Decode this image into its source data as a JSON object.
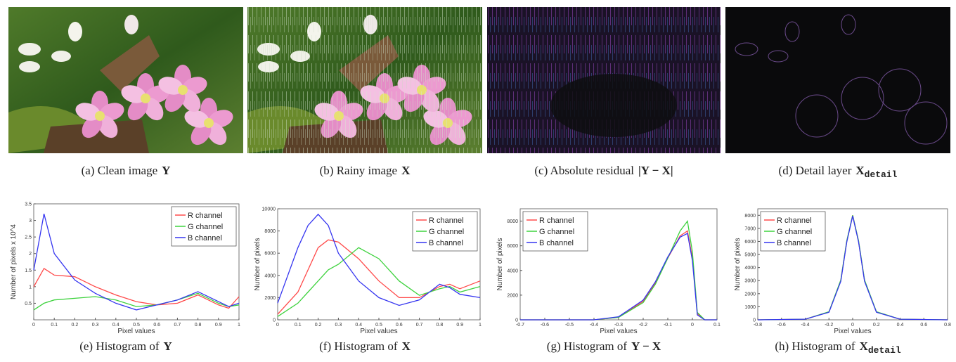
{
  "images": [
    {
      "caption": "(a) Clean image",
      "symbol": "Y"
    },
    {
      "caption": "(b) Rainy image",
      "symbol": "X"
    },
    {
      "caption": "(c) Absolute residual",
      "symbol": "|Y − X|"
    },
    {
      "caption": "(d) Detail layer",
      "symbol": "X",
      "subscript": "detail"
    }
  ],
  "chart_data": [
    {
      "type": "line",
      "caption": "(e) Histogram of",
      "symbol": "Y",
      "xlabel": "Pixel values",
      "ylabel": "Number of pixels x 10^4",
      "legend": "upper right",
      "x": [
        0,
        0.05,
        0.1,
        0.2,
        0.3,
        0.4,
        0.5,
        0.6,
        0.7,
        0.8,
        0.9,
        0.95,
        1
      ],
      "series": [
        {
          "name": "R channel",
          "color": "#ff4a4a",
          "values": [
            1.0,
            1.55,
            1.35,
            1.3,
            1.0,
            0.75,
            0.55,
            0.45,
            0.5,
            0.75,
            0.45,
            0.35,
            0.7
          ]
        },
        {
          "name": "G channel",
          "color": "#3ed23e",
          "values": [
            0.3,
            0.5,
            0.6,
            0.65,
            0.7,
            0.6,
            0.4,
            0.45,
            0.6,
            0.8,
            0.5,
            0.4,
            0.45
          ]
        },
        {
          "name": "B channel",
          "color": "#3535f0",
          "values": [
            1.5,
            3.2,
            2.0,
            1.2,
            0.8,
            0.5,
            0.3,
            0.45,
            0.6,
            0.85,
            0.55,
            0.4,
            0.5
          ]
        }
      ],
      "xlim": [
        0,
        1
      ],
      "xticks": [
        0,
        0.1,
        0.2,
        0.3,
        0.4,
        0.5,
        0.6,
        0.7,
        0.8,
        0.9,
        1
      ],
      "ylim": [
        0,
        3.5
      ],
      "yticks": [
        0.5,
        1,
        1.5,
        2,
        2.5,
        3,
        3.5
      ]
    },
    {
      "type": "line",
      "caption": "(f) Histogram of",
      "symbol": "X",
      "xlabel": "Pixel values",
      "ylabel": "Number of pixels",
      "legend": "upper right",
      "x": [
        0,
        0.1,
        0.15,
        0.2,
        0.25,
        0.3,
        0.4,
        0.5,
        0.6,
        0.7,
        0.8,
        0.85,
        0.9,
        1
      ],
      "series": [
        {
          "name": "R channel",
          "color": "#ff4a4a",
          "values": [
            500,
            2500,
            4500,
            6500,
            7200,
            7000,
            5500,
            3500,
            2000,
            2000,
            3000,
            3200,
            2800,
            3500
          ]
        },
        {
          "name": "G channel",
          "color": "#3ed23e",
          "values": [
            300,
            1500,
            2500,
            3500,
            4500,
            5000,
            6500,
            5500,
            3500,
            2200,
            2800,
            3000,
            2500,
            3000
          ]
        },
        {
          "name": "B channel",
          "color": "#3535f0",
          "values": [
            1500,
            6500,
            8500,
            9500,
            8500,
            6000,
            3500,
            2000,
            1300,
            1800,
            3200,
            2900,
            2300,
            2000
          ]
        }
      ],
      "xlim": [
        0,
        1
      ],
      "xticks": [
        0,
        0.1,
        0.2,
        0.3,
        0.4,
        0.5,
        0.6,
        0.7,
        0.8,
        0.9,
        1
      ],
      "ylim": [
        0,
        10000
      ],
      "yticks": [
        0,
        2000,
        4000,
        6000,
        8000,
        10000
      ]
    },
    {
      "type": "line",
      "caption": "(g) Histogram of",
      "symbol": "Y − X",
      "xlabel": "Pixel values",
      "ylabel": "Number of pixels",
      "legend": "upper left",
      "x": [
        -0.7,
        -0.4,
        -0.3,
        -0.2,
        -0.15,
        -0.1,
        -0.05,
        -0.02,
        0,
        0.02,
        0.05,
        0.1
      ],
      "series": [
        {
          "name": "R channel",
          "color": "#ff4a4a",
          "values": [
            0,
            0,
            200,
            1500,
            3000,
            5000,
            6800,
            7200,
            5000,
            500,
            0,
            0
          ]
        },
        {
          "name": "G channel",
          "color": "#3ed23e",
          "values": [
            0,
            0,
            200,
            1400,
            2900,
            5000,
            7200,
            8000,
            5500,
            600,
            0,
            0
          ]
        },
        {
          "name": "B channel",
          "color": "#3535f0",
          "values": [
            0,
            0,
            250,
            1600,
            3100,
            5100,
            6700,
            7000,
            4800,
            400,
            0,
            0
          ]
        }
      ],
      "xlim": [
        -0.7,
        0.1
      ],
      "xticks": [
        -0.7,
        -0.6,
        -0.5,
        -0.4,
        -0.3,
        -0.2,
        -0.1,
        0,
        0.1
      ],
      "ylim": [
        0,
        9000
      ],
      "yticks": [
        0,
        2000,
        4000,
        6000,
        8000
      ]
    },
    {
      "type": "line",
      "caption": "(h) Histogram of",
      "symbol": "X",
      "subscript": "detail",
      "xlabel": "Pixel values",
      "ylabel": "Number of pixels",
      "legend": "upper left",
      "x": [
        -0.8,
        -0.4,
        -0.2,
        -0.1,
        -0.05,
        0,
        0.05,
        0.1,
        0.2,
        0.4,
        0.8
      ],
      "series": [
        {
          "name": "R channel",
          "color": "#ff4a4a",
          "values": [
            0,
            50,
            600,
            3000,
            6000,
            8000,
            6000,
            3000,
            600,
            50,
            0
          ]
        },
        {
          "name": "G channel",
          "color": "#3ed23e",
          "values": [
            0,
            50,
            620,
            3050,
            6050,
            8000,
            6050,
            3050,
            620,
            50,
            0
          ]
        },
        {
          "name": "B channel",
          "color": "#3535f0",
          "values": [
            0,
            50,
            580,
            2950,
            5950,
            7950,
            5950,
            2950,
            580,
            50,
            0
          ]
        }
      ],
      "xlim": [
        -0.8,
        0.8
      ],
      "xticks": [
        -0.8,
        -0.6,
        -0.4,
        -0.2,
        0,
        0.2,
        0.4,
        0.6,
        0.8
      ],
      "ylim": [
        0,
        8500
      ],
      "yticks": [
        0,
        1000,
        2000,
        3000,
        4000,
        5000,
        6000,
        7000,
        8000
      ]
    }
  ]
}
